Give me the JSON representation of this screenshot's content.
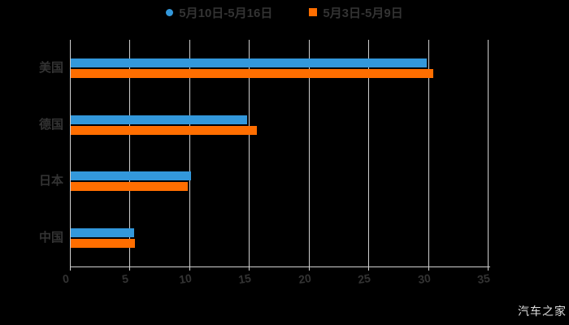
{
  "background": "#000000",
  "legend": {
    "items": [
      {
        "label": "5月10日-5月16日",
        "color": "#3398DB",
        "marker": "circle"
      },
      {
        "label": "5月3日-5月9日",
        "color": "#FF6E00",
        "marker": "square"
      }
    ]
  },
  "chart_data": {
    "type": "bar",
    "orientation": "horizontal",
    "title": "",
    "xlabel": "",
    "ylabel": "",
    "categories": [
      "美国",
      "德国",
      "日本",
      "中国"
    ],
    "series": [
      {
        "name": "5月10日-5月16日",
        "color": "#3398DB",
        "marker": "circle",
        "values": [
          29.8,
          14.8,
          10.1,
          5.3
        ]
      },
      {
        "name": "5月3日-5月9日",
        "color": "#FF6E00",
        "marker": "square",
        "values": [
          30.4,
          15.6,
          9.8,
          5.4
        ]
      }
    ],
    "xlim": [
      0,
      35
    ],
    "x_ticks": [
      0,
      5,
      10,
      15,
      20,
      25,
      30,
      35
    ],
    "grid": true,
    "legend_position": "top",
    "colors": {
      "grid_line": "#cfcfcf",
      "axis_line": "#cfcfcf",
      "tick_label": "#333333",
      "category_label": "#333333",
      "legend_label": "#333333",
      "background": "#000000"
    }
  },
  "watermark": "汽车之家"
}
